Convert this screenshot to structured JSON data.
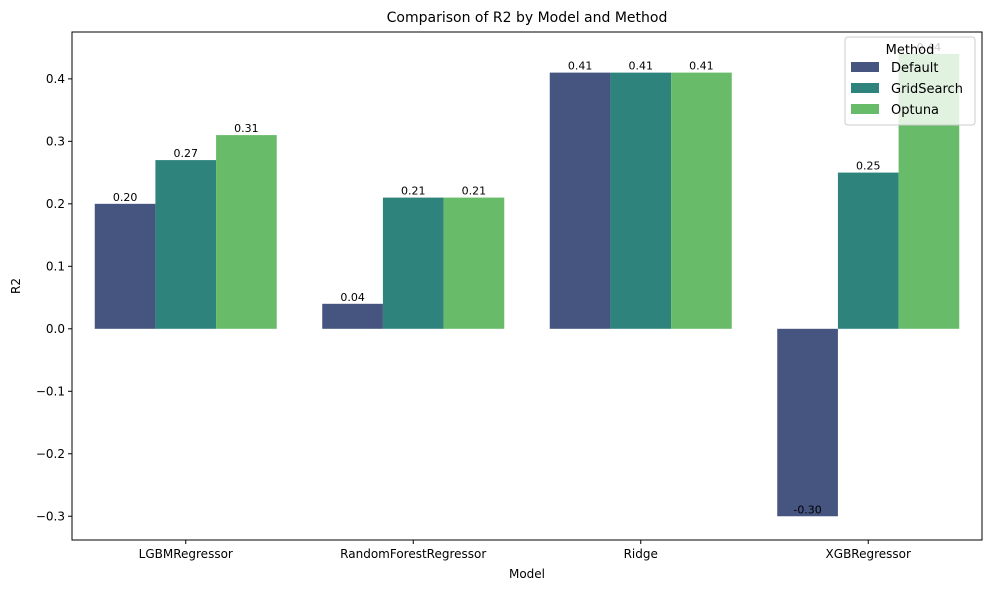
{
  "chart_data": {
    "type": "bar",
    "title": "Comparison of R2 by Model and Method",
    "xlabel": "Model",
    "ylabel": "R2",
    "categories": [
      "LGBMRegressor",
      "RandomForestRegressor",
      "Ridge",
      "XGBRegressor"
    ],
    "series": [
      {
        "name": "Default",
        "color": "#46557f",
        "values": [
          0.2,
          0.04,
          0.41,
          -0.3
        ],
        "labels": [
          "0.20",
          "0.04",
          "0.41",
          "-0.30"
        ]
      },
      {
        "name": "GridSearch",
        "color": "#2e847d",
        "values": [
          0.27,
          0.21,
          0.41,
          0.25
        ],
        "labels": [
          "0.27",
          "0.21",
          "0.41",
          "0.25"
        ]
      },
      {
        "name": "Optuna",
        "color": "#68bc69",
        "values": [
          0.31,
          0.21,
          0.41,
          0.44
        ],
        "labels": [
          "0.31",
          "0.21",
          "0.41",
          "0.44"
        ]
      }
    ],
    "ylim": [
      -0.338,
      0.475
    ],
    "yticks": [
      -0.3,
      -0.2,
      -0.1,
      0.0,
      0.1,
      0.2,
      0.3,
      0.4
    ],
    "ytick_labels": [
      "−0.3",
      "−0.2",
      "−0.1",
      "0.0",
      "0.1",
      "0.2",
      "0.3",
      "0.4"
    ],
    "legend": {
      "title": "Method",
      "placement": "top-right"
    },
    "grid": false
  }
}
